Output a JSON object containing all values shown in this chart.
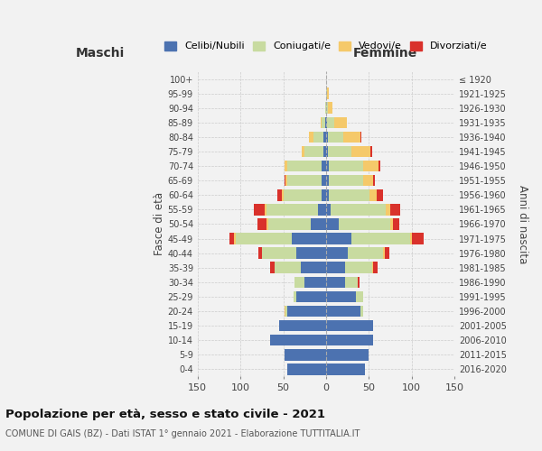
{
  "age_groups_bottom_to_top": [
    "0-4",
    "5-9",
    "10-14",
    "15-19",
    "20-24",
    "25-29",
    "30-34",
    "35-39",
    "40-44",
    "45-49",
    "50-54",
    "55-59",
    "60-64",
    "65-69",
    "70-74",
    "75-79",
    "80-84",
    "85-89",
    "90-94",
    "95-99",
    "100+"
  ],
  "birth_years_bottom_to_top": [
    "2016-2020",
    "2011-2015",
    "2006-2010",
    "2001-2005",
    "1996-2000",
    "1991-1995",
    "1986-1990",
    "1981-1985",
    "1976-1980",
    "1971-1975",
    "1966-1970",
    "1961-1965",
    "1956-1960",
    "1951-1955",
    "1946-1950",
    "1941-1945",
    "1936-1940",
    "1931-1935",
    "1926-1930",
    "1921-1925",
    "≤ 1920"
  ],
  "maschi": {
    "celibi": [
      45,
      48,
      65,
      55,
      45,
      35,
      25,
      30,
      35,
      40,
      18,
      10,
      5,
      5,
      5,
      3,
      3,
      1,
      0,
      0,
      0
    ],
    "coniugati": [
      0,
      0,
      0,
      0,
      2,
      3,
      12,
      30,
      40,
      65,
      50,
      60,
      45,
      40,
      40,
      22,
      12,
      4,
      1,
      0,
      0
    ],
    "vedovi": [
      0,
      0,
      0,
      0,
      1,
      0,
      0,
      0,
      0,
      3,
      2,
      2,
      2,
      2,
      3,
      3,
      5,
      1,
      0,
      0,
      0
    ],
    "divorziati": [
      0,
      0,
      0,
      0,
      0,
      0,
      0,
      5,
      4,
      5,
      10,
      12,
      5,
      1,
      1,
      0,
      0,
      0,
      0,
      0,
      0
    ]
  },
  "femmine": {
    "nubili": [
      45,
      50,
      55,
      55,
      40,
      35,
      22,
      22,
      25,
      30,
      15,
      5,
      3,
      3,
      3,
      2,
      2,
      1,
      0,
      0,
      0
    ],
    "coniugate": [
      0,
      0,
      0,
      0,
      3,
      8,
      15,
      32,
      42,
      68,
      60,
      65,
      48,
      40,
      40,
      28,
      18,
      8,
      2,
      1,
      0
    ],
    "vedove": [
      0,
      0,
      0,
      0,
      0,
      0,
      0,
      1,
      2,
      2,
      3,
      5,
      8,
      12,
      18,
      22,
      20,
      15,
      5,
      2,
      0
    ],
    "divorziate": [
      0,
      0,
      0,
      0,
      0,
      0,
      2,
      5,
      5,
      14,
      8,
      12,
      8,
      2,
      2,
      2,
      1,
      0,
      0,
      0,
      0
    ]
  },
  "color_celibi": "#4c72b0",
  "color_coniugati": "#c8dba0",
  "color_vedovi": "#f5c96a",
  "color_divorziati": "#d9312b",
  "xlim": 150,
  "title": "Popolazione per età, sesso e stato civile - 2021",
  "subtitle": "COMUNE DI GAIS (BZ) - Dati ISTAT 1° gennaio 2021 - Elaborazione TUTTITALIA.IT",
  "ylabel": "Fasce di età",
  "ylabel_right": "Anni di nascita",
  "xlabel_maschi": "Maschi",
  "xlabel_femmine": "Femmine",
  "bg_color": "#f2f2f2",
  "grid_color": "#cccccc"
}
